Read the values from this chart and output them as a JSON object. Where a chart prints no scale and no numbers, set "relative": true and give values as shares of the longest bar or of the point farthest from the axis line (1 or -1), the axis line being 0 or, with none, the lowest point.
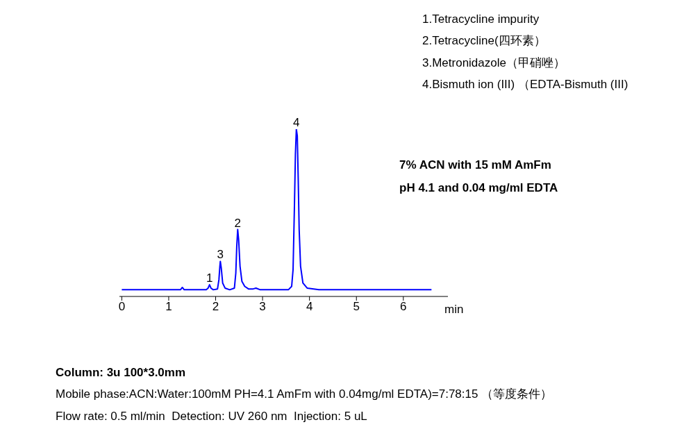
{
  "chart_data": {
    "type": "line",
    "relative": true,
    "xlabel": "min",
    "xlim": [
      -0.05,
      6.95
    ],
    "xticks": [
      0,
      1,
      2,
      3,
      4,
      5,
      6
    ],
    "marker": "none",
    "series": [
      {
        "color": "#0000ff",
        "x": [
          0,
          0.5,
          1.0,
          1.25,
          1.29,
          1.33,
          1.8,
          1.84,
          1.87,
          1.9,
          1.95,
          2.04,
          2.07,
          2.09,
          2.1,
          2.12,
          2.15,
          2.2,
          2.3,
          2.4,
          2.43,
          2.45,
          2.47,
          2.49,
          2.52,
          2.56,
          2.62,
          2.7,
          2.8,
          2.86,
          2.95,
          3.3,
          3.55,
          3.62,
          3.65,
          3.68,
          3.7,
          3.72,
          3.74,
          3.76,
          3.78,
          3.81,
          3.86,
          3.95,
          4.2,
          5.0,
          6.0,
          6.6
        ],
        "values": [
          0.04,
          0.04,
          0.04,
          0.04,
          0.054,
          0.04,
          0.04,
          0.05,
          0.07,
          0.05,
          0.04,
          0.045,
          0.1,
          0.18,
          0.21,
          0.17,
          0.08,
          0.05,
          0.04,
          0.05,
          0.14,
          0.3,
          0.4,
          0.34,
          0.18,
          0.09,
          0.06,
          0.045,
          0.045,
          0.05,
          0.04,
          0.04,
          0.04,
          0.06,
          0.16,
          0.55,
          0.85,
          1.0,
          0.96,
          0.7,
          0.4,
          0.18,
          0.08,
          0.05,
          0.04,
          0.04,
          0.04,
          0.04
        ]
      }
    ],
    "annotations": [
      "1.Tetracycline impurity",
      "2.Tetracycline(四环素）",
      "3.Metronidazole（甲硝唑）",
      "4.Bismuth ion (III) （EDTA-Bismuth (III)",
      "7% ACN with 15 mM AmFm",
      "pH 4.1 and 0.04 mg/ml EDTA",
      "Column: 3u 100*3.0mm",
      "Mobile phase:ACN:Water:100mM PH=4.1 AmFm with 0.04mg/ml EDTA)=7:78:15 （等度条件）",
      "Flow rate: 0.5 ml/min  Detection: UV 260 nm  Injection: 5 uL",
      {
        "text": "1",
        "x": 1.87,
        "y": 0.07
      },
      {
        "text": "3",
        "x": 2.1,
        "y": 0.21
      },
      {
        "text": "2",
        "x": 2.47,
        "y": 0.4
      },
      {
        "text": "4",
        "x": 3.72,
        "y": 1.0
      }
    ]
  }
}
